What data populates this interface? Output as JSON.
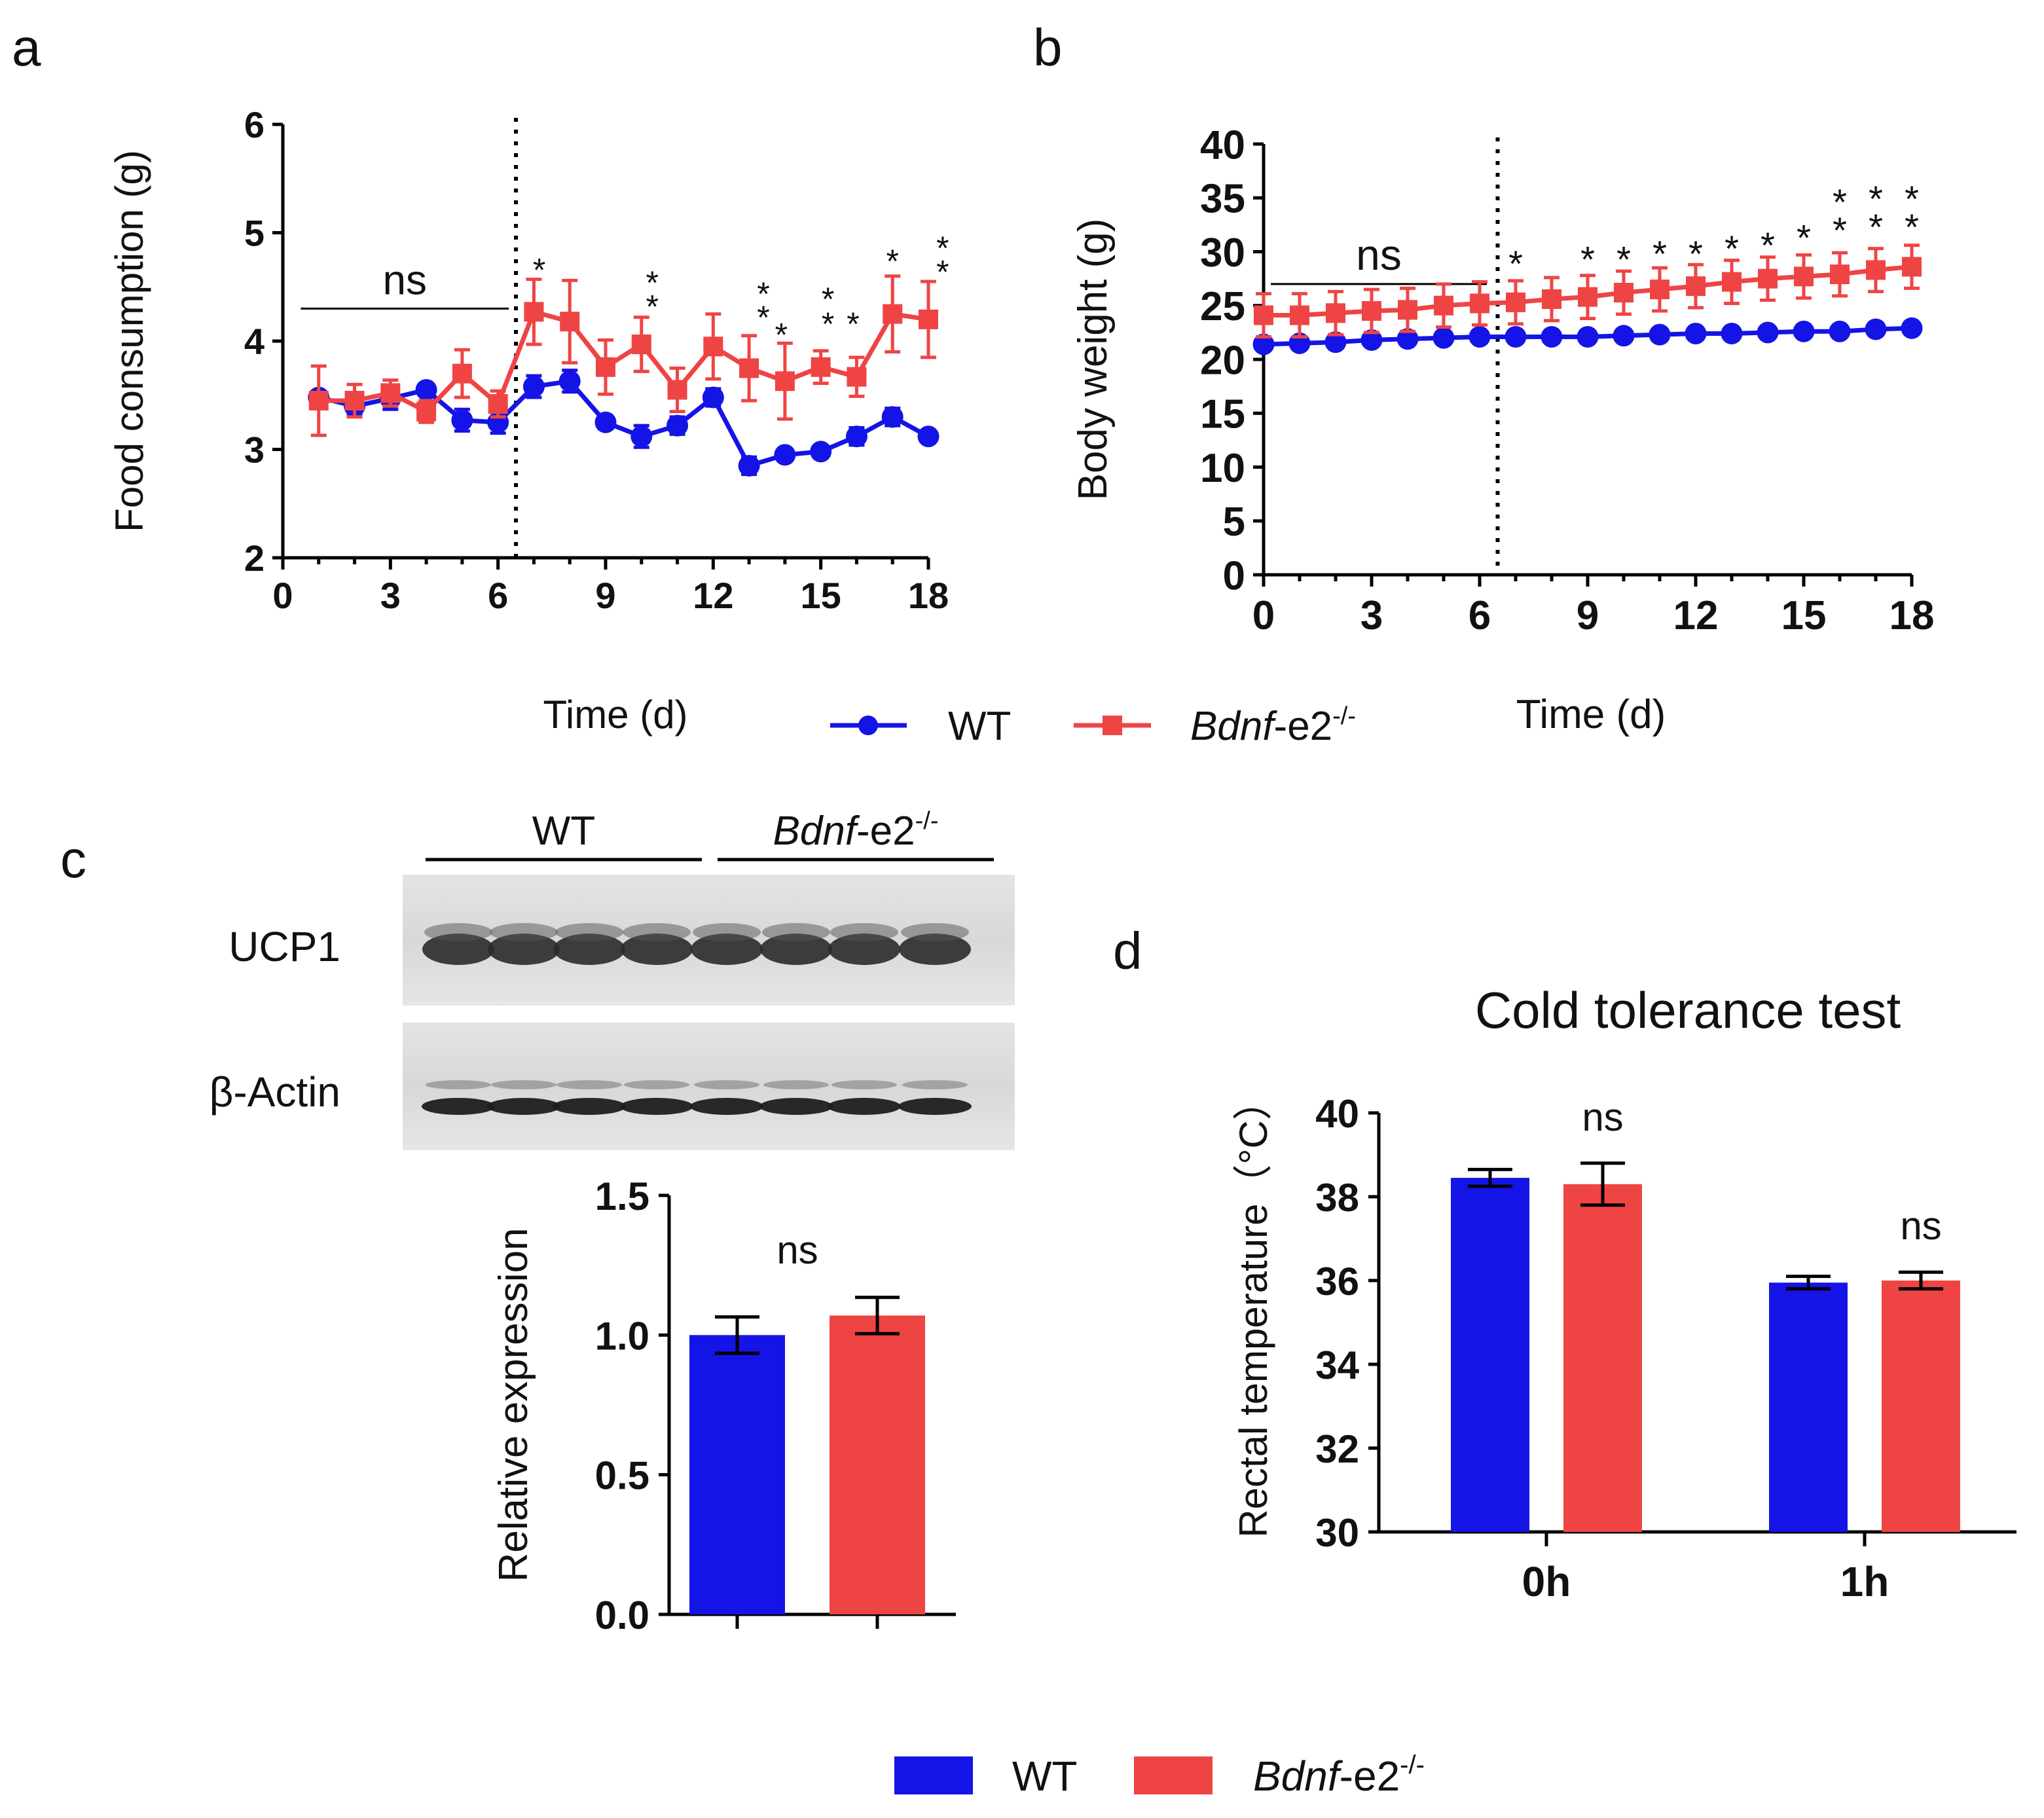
{
  "colors": {
    "wt": "#1414e6",
    "ko": "#ef4444",
    "axis": "#000000"
  },
  "chart_data": [
    {
      "panel": "a",
      "type": "line",
      "ylabel": "Food  consumption (g)",
      "xlabel": "Time (d)",
      "xlim": [
        0,
        18
      ],
      "ylim": [
        2,
        6
      ],
      "xticks": [
        "0",
        "3",
        "6",
        "9",
        "12",
        "15",
        "18"
      ],
      "yticks": [
        "2",
        "3",
        "4",
        "5",
        "6"
      ],
      "divider_x": 6.5,
      "ns_bracket": {
        "x": [
          0.5,
          6.3
        ],
        "y": 4.3,
        "label": "ns"
      },
      "series": [
        {
          "name": "WT",
          "x": [
            1,
            2,
            3,
            4,
            5,
            6,
            7,
            8,
            9,
            10,
            11,
            12,
            13,
            14,
            15,
            16,
            17,
            18
          ],
          "values": [
            3.48,
            3.4,
            3.47,
            3.55,
            3.27,
            3.25,
            3.58,
            3.63,
            3.25,
            3.12,
            3.22,
            3.48,
            2.85,
            2.95,
            2.98,
            3.12,
            3.3,
            3.12
          ],
          "err": [
            0.05,
            0.07,
            0.1,
            0.04,
            0.1,
            0.1,
            0.1,
            0.1,
            0.06,
            0.1,
            0.08,
            0.08,
            0.08,
            0.04,
            0.04,
            0.08,
            0.08,
            0.04
          ]
        },
        {
          "name": "Bdnf-e2-/-",
          "x": [
            1,
            2,
            3,
            4,
            5,
            6,
            7,
            8,
            9,
            10,
            11,
            12,
            13,
            14,
            15,
            16,
            17,
            18
          ],
          "values": [
            3.45,
            3.45,
            3.52,
            3.35,
            3.7,
            3.42,
            4.27,
            4.18,
            3.76,
            3.97,
            3.55,
            3.95,
            3.75,
            3.63,
            3.76,
            3.67,
            4.25,
            4.2
          ],
          "err": [
            0.32,
            0.15,
            0.12,
            0.1,
            0.22,
            0.12,
            0.3,
            0.38,
            0.25,
            0.25,
            0.2,
            0.3,
            0.3,
            0.35,
            0.15,
            0.18,
            0.35,
            0.35
          ]
        }
      ],
      "annotations": [
        {
          "x": 7.15,
          "y": 4.72,
          "text": "*"
        },
        {
          "x": 10.3,
          "y": 4.6,
          "text": "*"
        },
        {
          "x": 10.3,
          "y": 4.38,
          "text": "*"
        },
        {
          "x": 13.4,
          "y": 4.5,
          "text": "*"
        },
        {
          "x": 13.4,
          "y": 4.28,
          "text": "*"
        },
        {
          "x": 13.9,
          "y": 4.12,
          "text": "*"
        },
        {
          "x": 15.2,
          "y": 4.45,
          "text": "*"
        },
        {
          "x": 15.2,
          "y": 4.22,
          "text": "*"
        },
        {
          "x": 15.9,
          "y": 4.22,
          "text": "*"
        },
        {
          "x": 17.0,
          "y": 4.8,
          "text": "*"
        },
        {
          "x": 18.4,
          "y": 4.92,
          "text": "*"
        },
        {
          "x": 18.4,
          "y": 4.7,
          "text": "*"
        }
      ]
    },
    {
      "panel": "b",
      "type": "line",
      "ylabel": "Body weight (g)",
      "xlabel": "Time (d)",
      "xlim": [
        0,
        18
      ],
      "ylim": [
        0,
        40
      ],
      "xticks": [
        "0",
        "3",
        "6",
        "9",
        "12",
        "15",
        "18"
      ],
      "yticks": [
        "0",
        "5",
        "10",
        "15",
        "20",
        "25",
        "30",
        "35",
        "40"
      ],
      "divider_x": 6.5,
      "ns_bracket": {
        "x": [
          0.2,
          6.2
        ],
        "y": 27,
        "label": "ns"
      },
      "series": [
        {
          "name": "WT",
          "x": [
            0,
            1,
            2,
            3,
            4,
            5,
            6,
            7,
            8,
            9,
            10,
            11,
            12,
            13,
            14,
            15,
            16,
            17,
            18
          ],
          "values": [
            21.4,
            21.5,
            21.6,
            21.8,
            21.9,
            22.0,
            22.1,
            22.1,
            22.1,
            22.1,
            22.2,
            22.3,
            22.4,
            22.4,
            22.5,
            22.6,
            22.6,
            22.8,
            22.9
          ]
        },
        {
          "name": "Bdnf-e2-/-",
          "x": [
            0,
            1,
            2,
            3,
            4,
            5,
            6,
            7,
            8,
            9,
            10,
            11,
            12,
            13,
            14,
            15,
            16,
            17,
            18
          ],
          "values": [
            24.1,
            24.1,
            24.3,
            24.5,
            24.6,
            25.0,
            25.2,
            25.3,
            25.6,
            25.8,
            26.2,
            26.5,
            26.8,
            27.2,
            27.5,
            27.7,
            27.9,
            28.3,
            28.6
          ],
          "err": [
            2.0,
            2.0,
            2.0,
            2.0,
            2.0,
            2.0,
            2.0,
            2.0,
            2.0,
            2.0,
            2.0,
            2.0,
            2.0,
            2.0,
            2.0,
            2.0,
            2.0,
            2.0,
            2.0
          ]
        }
      ],
      "annotations": [
        {
          "x": 7.0,
          "y": 29.6,
          "text": "*"
        },
        {
          "x": 9.0,
          "y": 30.0,
          "text": "*"
        },
        {
          "x": 10.0,
          "y": 30.0,
          "text": "*"
        },
        {
          "x": 11.0,
          "y": 30.5,
          "text": "*"
        },
        {
          "x": 12.0,
          "y": 30.5,
          "text": "*"
        },
        {
          "x": 13.0,
          "y": 31.0,
          "text": "*"
        },
        {
          "x": 14.0,
          "y": 31.3,
          "text": "*"
        },
        {
          "x": 15.0,
          "y": 32.0,
          "text": "*"
        },
        {
          "x": 16.0,
          "y": 35.3,
          "text": "*"
        },
        {
          "x": 16.0,
          "y": 32.7,
          "text": "*"
        },
        {
          "x": 17.0,
          "y": 35.6,
          "text": "*"
        },
        {
          "x": 17.0,
          "y": 33.0,
          "text": "*"
        },
        {
          "x": 18.0,
          "y": 35.6,
          "text": "*"
        },
        {
          "x": 18.0,
          "y": 33.0,
          "text": "*"
        }
      ]
    },
    {
      "panel": "c",
      "type": "bar",
      "ylabel": "Relative expression",
      "ylim": [
        0,
        1.5
      ],
      "yticks": [
        "0.0",
        "0.5",
        "1.0",
        "1.5"
      ],
      "categories": [
        "WT",
        "Bdnf-e2-/-"
      ],
      "values": [
        1.0,
        1.07
      ],
      "err": [
        0.065,
        0.065
      ],
      "annotation": "ns"
    },
    {
      "panel": "d",
      "type": "bar",
      "title": "Cold tolerance test",
      "ylabel": "Rectal temperature（°C）",
      "ylim": [
        30,
        40
      ],
      "yticks": [
        "30",
        "32",
        "34",
        "36",
        "38",
        "40"
      ],
      "categories": [
        "0h",
        "1h"
      ],
      "series": [
        {
          "name": "WT",
          "values": [
            38.45,
            35.95
          ],
          "err": [
            0.2,
            0.15
          ]
        },
        {
          "name": "Bdnf-e2-/-",
          "values": [
            38.3,
            36.0
          ],
          "err": [
            0.5,
            0.2
          ]
        }
      ],
      "annotations": [
        "ns",
        "ns"
      ]
    }
  ],
  "legend_ab": {
    "wt": "WT",
    "ko_italic": "Bdnf",
    "ko_rest": "-e2",
    "ko_sup": "-/-"
  },
  "legend_cd": {
    "wt": "WT",
    "ko_italic": "Bdnf",
    "ko_rest": "-e2",
    "ko_sup": "-/-"
  },
  "western_blot": {
    "groups": [
      {
        "italic": "",
        "rest": "WT",
        "sup": ""
      },
      {
        "italic": "Bdnf",
        "rest": "-e2",
        "sup": "-/-"
      }
    ],
    "bands": [
      "UCP1",
      "β-Actin"
    ]
  }
}
